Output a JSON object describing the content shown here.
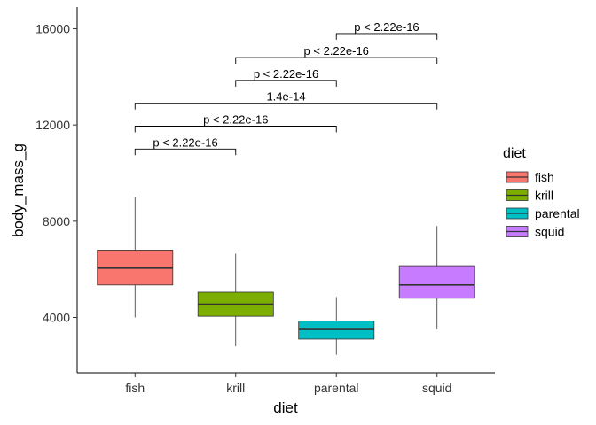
{
  "chart_data": {
    "type": "boxplot",
    "xlabel": "diet",
    "ylabel": "body_mass_g",
    "ylim": [
      1700,
      16900
    ],
    "y_ticks": [
      4000,
      8000,
      12000,
      16000
    ],
    "y_tick_labels": [
      "4000",
      "8000",
      "12000",
      "16000"
    ],
    "grid": false,
    "legend": {
      "title": "diet",
      "position": "right",
      "entries": [
        "fish",
        "krill",
        "parental",
        "squid"
      ]
    },
    "categories": [
      "fish",
      "krill",
      "parental",
      "squid"
    ],
    "boxes": [
      {
        "category": "fish",
        "min": 4000,
        "q1": 5350,
        "median": 6050,
        "q3": 6800,
        "max": 9000,
        "color": "#F8766D"
      },
      {
        "category": "krill",
        "min": 2800,
        "q1": 4050,
        "median": 4550,
        "q3": 5050,
        "max": 6650,
        "color": "#7CAE00"
      },
      {
        "category": "parental",
        "min": 2450,
        "q1": 3100,
        "median": 3500,
        "q3": 3850,
        "max": 4850,
        "color": "#00BFC4"
      },
      {
        "category": "squid",
        "min": 3500,
        "q1": 4800,
        "median": 5350,
        "q3": 6150,
        "max": 7800,
        "color": "#C77CFF"
      }
    ],
    "comparisons": [
      {
        "group1": "fish",
        "group2": "krill",
        "y": 11000,
        "label": "p < 2.22e-16"
      },
      {
        "group1": "fish",
        "group2": "parental",
        "y": 11950,
        "label": "p < 2.22e-16"
      },
      {
        "group1": "fish",
        "group2": "squid",
        "y": 12900,
        "label": "1.4e-14"
      },
      {
        "group1": "krill",
        "group2": "parental",
        "y": 13850,
        "label": "p < 2.22e-16"
      },
      {
        "group1": "krill",
        "group2": "squid",
        "y": 14800,
        "label": "p < 2.22e-16"
      },
      {
        "group1": "parental",
        "group2": "squid",
        "y": 15800,
        "label": "p < 2.22e-16"
      }
    ]
  }
}
